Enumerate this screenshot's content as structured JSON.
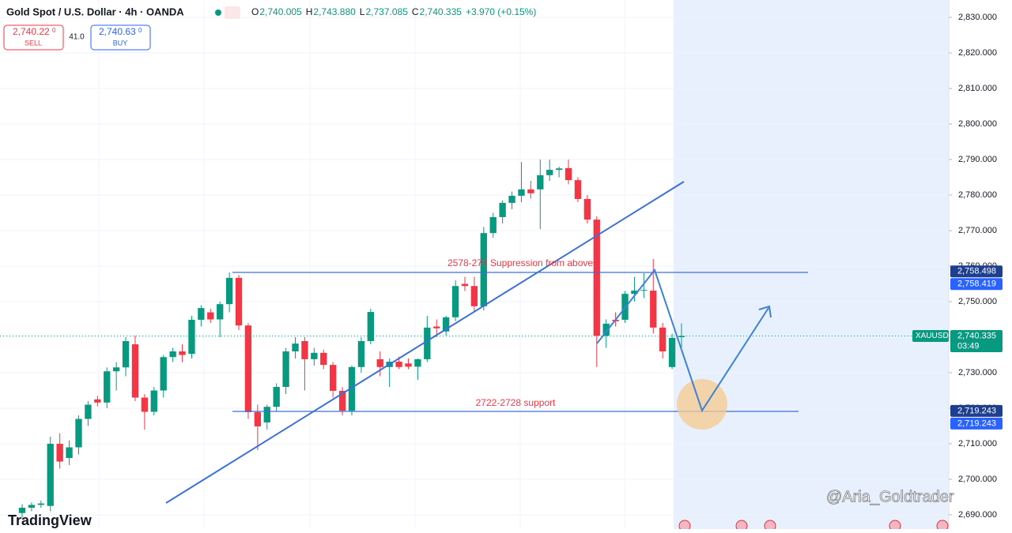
{
  "chart_data": {
    "type": "candlestick",
    "title": "Gold Spot / U.S. Dollar · 4h · OANDA",
    "ohlc": [
      {
        "label": "O",
        "value": "2,740.005"
      },
      {
        "label": "H",
        "value": "2,743.880"
      },
      {
        "label": "L",
        "value": "2,737.085"
      },
      {
        "label": "C",
        "value": "2,740.335"
      }
    ],
    "change": "+3.970 (+0.15%)",
    "sell": {
      "price": "2,740.22",
      "fraction": "0",
      "label": "SELL"
    },
    "spread": "41.0",
    "buy": {
      "price": "2,740.63",
      "fraction": "0",
      "label": "BUY"
    },
    "up_color": "#089981",
    "down_color": "#f23645",
    "open": [
      2690.5,
      2692,
      2692.8,
      2692.5,
      2710,
      2706,
      2709,
      2717,
      2722.5,
      2721.6,
      2730.4,
      2731.5,
      2738,
      2723,
      2719,
      2725,
      2734.4,
      2736,
      2735.3,
      2744.9,
      2747,
      2745,
      2749.3,
      2756.7,
      2743.3,
      2718.9,
      2716,
      2720.4,
      2726,
      2736,
      2738.9,
      2733.8,
      2735.6,
      2732.2,
      2724.9,
      2719.3,
      2731.6,
      2738.9,
      2733.8,
      2731.6,
      2733.1,
      2732.6,
      2731.7,
      2733.8,
      2743,
      2741.6,
      2745.6,
      2755,
      2754.4,
      2748.7,
      2769.3,
      2773.8,
      2777.8,
      2779.8,
      2781.6,
      2781.6,
      2785.6,
      2787.1,
      2787.6,
      2784.2,
      2778.9,
      2773.1,
      2740.4,
      2744.9,
      2744.9,
      2752.2,
      2753.1,
      2753.1,
      2742.7,
      2731.6,
      2740.005
    ],
    "high": [
      2693,
      2693.5,
      2694,
      2712,
      2713,
      2711,
      2718,
      2722,
      2723.5,
      2731.5,
      2733,
      2740,
      2740.5,
      2724,
      2726,
      2735,
      2737,
      2738,
      2746,
      2749,
      2748,
      2750,
      2758.2,
      2757.5,
      2744,
      2721,
      2721,
      2727,
      2737,
      2740,
      2740,
      2737,
      2736.5,
      2733,
      2726,
      2732,
      2740,
      2748,
      2736,
      2734,
      2734.5,
      2734,
      2734,
      2746,
      2745,
      2746,
      2756,
      2757,
      2757,
      2771,
      2775,
      2778.5,
      2781,
      2789.3,
      2784,
      2790,
      2790,
      2788,
      2790,
      2785,
      2780,
      2774,
      2745,
      2747,
      2753,
      2757,
      2758,
      2762,
      2744,
      2741,
      2743.88
    ],
    "low": [
      2689,
      2691,
      2692,
      2691,
      2703,
      2704,
      2707,
      2715,
      2720.5,
      2720,
      2725,
      2729,
      2722,
      2714,
      2718,
      2723,
      2733,
      2733,
      2734,
      2743,
      2744,
      2740,
      2747,
      2742,
      2717,
      2708.2,
      2714,
      2719,
      2724,
      2734,
      2725,
      2732,
      2731,
      2723,
      2718,
      2718,
      2730,
      2738,
      2729,
      2726,
      2731,
      2731,
      2728,
      2733,
      2740,
      2740.5,
      2744.5,
      2753,
      2747,
      2747.5,
      2768,
      2772,
      2776,
      2778,
      2779,
      2770.4,
      2784,
      2785,
      2783,
      2778,
      2772,
      2731.6,
      2737,
      2743,
      2744,
      2750,
      2751,
      2741,
      2734,
      2731,
      2737.085
    ],
    "close": [
      2692,
      2692.8,
      2693.2,
      2710,
      2705,
      2709,
      2717,
      2721,
      2721.6,
      2730.4,
      2731.5,
      2738.9,
      2723,
      2719,
      2725,
      2734.4,
      2736,
      2735,
      2744.9,
      2748.2,
      2745,
      2749.3,
      2756.7,
      2743.3,
      2718.9,
      2714.9,
      2720.4,
      2726,
      2736,
      2738.2,
      2733.8,
      2735.6,
      2732.2,
      2724.9,
      2719.3,
      2731.6,
      2738.9,
      2747.1,
      2731.6,
      2733.1,
      2731.6,
      2731.7,
      2733.8,
      2742.7,
      2742.5,
      2745.6,
      2754.4,
      2754.4,
      2748.7,
      2769.3,
      2773.8,
      2777.8,
      2779.8,
      2781.6,
      2780.5,
      2785.6,
      2787.1,
      2787.5,
      2784.2,
      2778.9,
      2773.1,
      2740.4,
      2743.8,
      2744.5,
      2752.2,
      2753.1,
      2753.3,
      2742.7,
      2736,
      2739.8,
      2740.335
    ],
    "ylim": [
      2686,
      2834.9
    ],
    "yticks": [
      {
        "value": 2690,
        "label": "2,690.000"
      },
      {
        "value": 2700,
        "label": "2,700.000"
      },
      {
        "value": 2710,
        "label": "2,710.000"
      },
      {
        "value": 2720,
        "label": "2,720.000"
      },
      {
        "value": 2730,
        "label": "2,730.000"
      },
      {
        "value": 2740,
        "label": "2,740.000"
      },
      {
        "value": 2750,
        "label": "2,750.000"
      },
      {
        "value": 2760,
        "label": "2,760.000"
      },
      {
        "value": 2770,
        "label": "2,770.000"
      },
      {
        "value": 2780,
        "label": "2,780.000"
      },
      {
        "value": 2790,
        "label": "2,790.000"
      },
      {
        "value": 2800,
        "label": "2,800.000"
      },
      {
        "value": 2810,
        "label": "2,810.000"
      },
      {
        "value": 2820,
        "label": "2,820.000"
      },
      {
        "value": 2830,
        "label": "2,830.000"
      }
    ],
    "grid": true,
    "price_labels": [
      {
        "value": 2758.498,
        "label": "2,758.498",
        "color": "#1e3f8f"
      },
      {
        "value": 2758.419,
        "label": "2,758.419",
        "color": "#2962ff"
      },
      {
        "value": 2740.335,
        "label": "2,740.335",
        "color": "#089981",
        "symbol": "XAUUSD",
        "countdown": "03:49"
      },
      {
        "value": 2719.243,
        "label": "2,719.243",
        "color": "#1e3f8f"
      },
      {
        "value": 2719.243,
        "label": "2,719.243",
        "color": "#2962ff"
      }
    ],
    "annotations": [
      "2578-276 Suppression from above",
      "2722-2728 support"
    ],
    "brand": "TradingView",
    "watermark": "@Aria_Goldtrader"
  }
}
